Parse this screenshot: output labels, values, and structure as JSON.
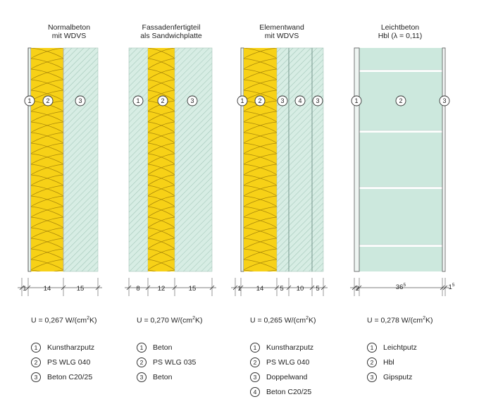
{
  "columns": [
    {
      "title_line1": "Normalbeton",
      "title_line2": "mit WDVS",
      "u_value_prefix": "U = 0,267 W/(cm",
      "u_value_exp": "2",
      "u_value_suffix": "K)",
      "layers": [
        {
          "id": "1",
          "material": "plaster",
          "thickness": "1"
        },
        {
          "id": "2",
          "material": "insulation",
          "thickness": "14"
        },
        {
          "id": "3",
          "material": "concrete",
          "thickness": "15"
        }
      ],
      "legend": [
        {
          "num": "1",
          "text": "Kunstharzputz"
        },
        {
          "num": "2",
          "text": "PS WLG 040"
        },
        {
          "num": "3",
          "text": "Beton C20/25"
        }
      ]
    },
    {
      "title_line1": "Fassadenfertigteil",
      "title_line2": "als Sandwichplatte",
      "u_value_prefix": "U = 0,270 W/(cm",
      "u_value_exp": "2",
      "u_value_suffix": "K)",
      "layers": [
        {
          "id": "1",
          "material": "concrete",
          "thickness": "8"
        },
        {
          "id": "2",
          "material": "insulation",
          "thickness": "12"
        },
        {
          "id": "3",
          "material": "concrete",
          "thickness": "15"
        }
      ],
      "legend": [
        {
          "num": "1",
          "text": "Beton"
        },
        {
          "num": "2",
          "text": "PS WLG 035"
        },
        {
          "num": "3",
          "text": "Beton"
        }
      ]
    },
    {
      "title_line1": "Elementwand",
      "title_line2": "mit WDVS",
      "u_value_prefix": "U = 0,265 W/(cm",
      "u_value_exp": "2",
      "u_value_suffix": "K)",
      "layers": [
        {
          "id": "1",
          "material": "plaster",
          "thickness": "1"
        },
        {
          "id": "2",
          "material": "insulation",
          "thickness": "14"
        },
        {
          "id": "3",
          "material": "concrete",
          "thickness": "5"
        },
        {
          "id": "4",
          "material": "concrete",
          "thickness": "10"
        },
        {
          "id": "3",
          "material": "concrete",
          "thickness": "5"
        }
      ],
      "legend": [
        {
          "num": "1",
          "text": "Kunstharzputz"
        },
        {
          "num": "2",
          "text": "PS WLG 040"
        },
        {
          "num": "3",
          "text": "Doppelwand"
        },
        {
          "num": "4",
          "text": "Beton C20/25"
        }
      ]
    },
    {
      "title_line1": "Leichtbeton",
      "title_line2": "Hbl (λ = 0,11)",
      "u_value_prefix": "U = 0,278 W/(cm",
      "u_value_exp": "2",
      "u_value_suffix": "K)",
      "layers": [
        {
          "id": "1",
          "material": "plaster",
          "thickness": "2"
        },
        {
          "id": "2",
          "material": "lightweight-block",
          "thickness": "36",
          "thickness_sup": "5"
        },
        {
          "id": "3",
          "material": "plaster",
          "thickness": "1",
          "thickness_sup": "5"
        }
      ],
      "legend": [
        {
          "num": "1",
          "text": "Leichtputz"
        },
        {
          "num": "2",
          "text": "Hbl"
        },
        {
          "num": "3",
          "text": "Gipsputz"
        }
      ]
    }
  ],
  "colors": {
    "insulation": "#f7d117",
    "insulation_line": "#a8860a",
    "concrete": "#d7ede4",
    "concrete_hatch": "#8fb8a8",
    "block": "#cce8dd",
    "outline": "#555555"
  }
}
